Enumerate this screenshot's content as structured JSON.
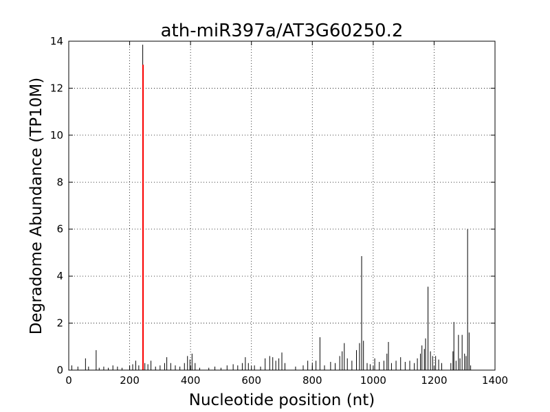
{
  "chart_data": {
    "type": "vlines",
    "title": "ath-miR397a/AT3G60250.2",
    "x_label": "Nucleotide position (nt)",
    "y_label": "Degradome Abundance (TP10M)",
    "xlim": [
      0,
      1400
    ],
    "ylim": [
      0,
      14
    ],
    "xticks": [
      0,
      200,
      400,
      600,
      800,
      1000,
      1200,
      1400
    ],
    "yticks": [
      0,
      2,
      4,
      6,
      8,
      10,
      12,
      14
    ],
    "grid": true,
    "series": [
      {
        "color": "#000000",
        "x": [
          10,
          30,
          55,
          65,
          90,
          100,
          115,
          130,
          145,
          160,
          175,
          200,
          210,
          220,
          230,
          243,
          250,
          260,
          270,
          285,
          300,
          315,
          322,
          335,
          350,
          365,
          380,
          390,
          398,
          405,
          415,
          430,
          460,
          480,
          500,
          520,
          540,
          555,
          570,
          580,
          590,
          610,
          630,
          645,
          660,
          670,
          680,
          690,
          700,
          710,
          745,
          770,
          785,
          800,
          812,
          825,
          840,
          860,
          875,
          890,
          898,
          905,
          915,
          930,
          945,
          955,
          962,
          968,
          980,
          990,
          1005,
          1020,
          1035,
          1045,
          1050,
          1060,
          1075,
          1090,
          1105,
          1120,
          1135,
          1145,
          1155,
          1160,
          1168,
          1172,
          1180,
          1188,
          1195,
          1205,
          1215,
          1225,
          1255,
          1262,
          1265,
          1272,
          1280,
          1285,
          1292,
          1300,
          1305,
          1310,
          1315,
          1320
        ],
        "values": [
          0.2,
          0.15,
          0.5,
          0.15,
          0.85,
          0.1,
          0.15,
          0.1,
          0.2,
          0.15,
          0.1,
          0.2,
          0.25,
          0.4,
          0.2,
          13.85,
          0.3,
          0.25,
          0.4,
          0.15,
          0.2,
          0.3,
          0.55,
          0.3,
          0.2,
          0.15,
          0.3,
          0.6,
          0.45,
          0.7,
          0.3,
          0.1,
          0.1,
          0.15,
          0.1,
          0.2,
          0.25,
          0.2,
          0.3,
          0.55,
          0.3,
          0.2,
          0.15,
          0.5,
          0.6,
          0.55,
          0.4,
          0.5,
          0.75,
          0.3,
          0.15,
          0.2,
          0.4,
          0.3,
          0.4,
          1.4,
          0.2,
          0.35,
          0.3,
          0.6,
          0.8,
          1.15,
          0.5,
          0.4,
          0.85,
          1.15,
          4.85,
          1.25,
          0.3,
          0.25,
          0.5,
          0.35,
          0.4,
          0.7,
          1.2,
          0.3,
          0.4,
          0.55,
          0.35,
          0.4,
          0.3,
          0.5,
          0.7,
          1.05,
          0.9,
          1.35,
          3.55,
          0.8,
          0.6,
          0.6,
          0.45,
          0.3,
          0.3,
          0.8,
          2.05,
          0.4,
          1.5,
          0.5,
          1.5,
          0.7,
          0.6,
          6.0,
          1.6,
          0.2
        ]
      },
      {
        "color": "#ff0000",
        "x": [
          244
        ],
        "values": [
          13.0
        ]
      }
    ]
  }
}
